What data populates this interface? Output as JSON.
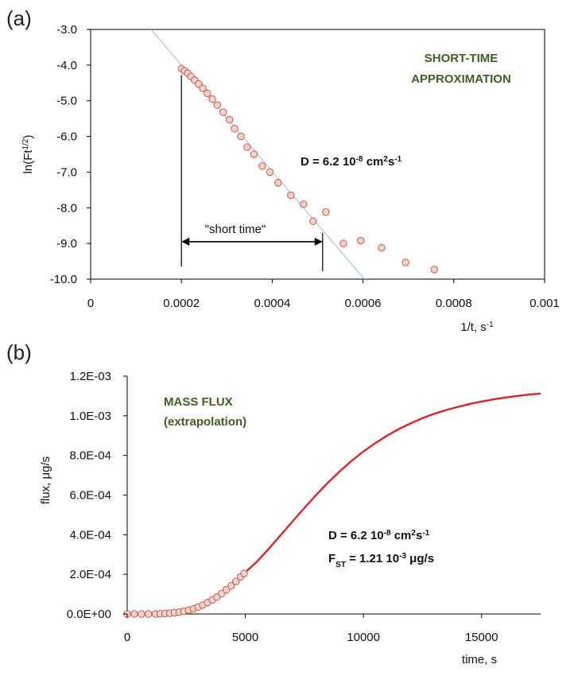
{
  "figure": {
    "panel_a_letter": "(a)",
    "panel_b_letter": "(b)"
  },
  "chart_data": [
    {
      "type": "scatter",
      "panel": "(a)",
      "xlabel_parts": [
        "1/t, s",
        "-1"
      ],
      "ylabel_parts": [
        "ln(Ft",
        "1/2",
        ")"
      ],
      "xlim": [
        0,
        0.001
      ],
      "ylim": [
        -10.0,
        -3.0
      ],
      "x_ticks": [
        0,
        0.0002,
        0.0004,
        0.0006,
        0.0008,
        0.001
      ],
      "x_tick_labels": [
        "0",
        "0.0002",
        "0.0004",
        "0.0006",
        "0.0008",
        "0.001"
      ],
      "y_ticks": [
        -3.0,
        -4.0,
        -5.0,
        -6.0,
        -7.0,
        -8.0,
        -9.0,
        -10.0
      ],
      "y_tick_labels": [
        "-3.0",
        "-4.0",
        "-5.0",
        "-6.0",
        "-7.0",
        "-8.0",
        "-9.0",
        "-10.0"
      ],
      "grid": false,
      "marker_fill": "#f6d5cc",
      "marker_edge": "#c9544a",
      "fit_line_color": "#9dbdd0",
      "points": [
        {
          "x": 0.0002,
          "y": -4.1
        },
        {
          "x": 0.000207,
          "y": -4.16
        },
        {
          "x": 0.000214,
          "y": -4.23
        },
        {
          "x": 0.000221,
          "y": -4.32
        },
        {
          "x": 0.000229,
          "y": -4.42
        },
        {
          "x": 0.000238,
          "y": -4.53
        },
        {
          "x": 0.000247,
          "y": -4.65
        },
        {
          "x": 0.000257,
          "y": -4.79
        },
        {
          "x": 0.000268,
          "y": -4.95
        },
        {
          "x": 0.000279,
          "y": -5.12
        },
        {
          "x": 0.000292,
          "y": -5.32
        },
        {
          "x": 0.000306,
          "y": -5.53
        },
        {
          "x": 0.000317,
          "y": -5.78
        },
        {
          "x": 0.000331,
          "y": -6.0
        },
        {
          "x": 0.000345,
          "y": -6.3
        },
        {
          "x": 0.00036,
          "y": -6.5
        },
        {
          "x": 0.000378,
          "y": -6.83
        },
        {
          "x": 0.000395,
          "y": -7.0
        },
        {
          "x": 0.000413,
          "y": -7.3
        },
        {
          "x": 0.000441,
          "y": -7.65
        },
        {
          "x": 0.000469,
          "y": -7.9
        },
        {
          "x": 0.00049,
          "y": -8.38
        },
        {
          "x": 0.000518,
          "y": -8.12
        },
        {
          "x": 0.000557,
          "y": -9.0
        },
        {
          "x": 0.000595,
          "y": -8.92
        },
        {
          "x": 0.000641,
          "y": -9.12
        },
        {
          "x": 0.000694,
          "y": -9.53
        },
        {
          "x": 0.000757,
          "y": -9.73
        }
      ],
      "fit_line": [
        {
          "x": 0.000133,
          "y": -3.0
        },
        {
          "x": 0.000603,
          "y": -10.0
        }
      ],
      "short_time_range": [
        0.0002,
        0.000511
      ],
      "short_time_arrow_y": -8.95,
      "annotations": {
        "short_time_label": "\"short time\"",
        "title_line1": "SHORT-TIME",
        "title_line2": "APPROXIMATION",
        "d_label_main": "D = 6.2 10",
        "d_label_exp": "-8",
        "d_label_unit": " cm",
        "d_label_unit_exp": "2",
        "d_label_unit2": "s",
        "d_label_unit2_exp": "-1"
      }
    },
    {
      "type": "scatter",
      "panel": "(b)",
      "xlabel": "time, s",
      "ylabel": "flux, μg/s",
      "xlim": [
        0,
        17500
      ],
      "ylim": [
        0,
        0.0012
      ],
      "x_ticks": [
        0,
        5000,
        10000,
        15000
      ],
      "x_tick_labels": [
        "0",
        "5000",
        "10000",
        "15000"
      ],
      "y_ticks": [
        0,
        0.0002,
        0.0004,
        0.0006,
        0.0008,
        0.001,
        0.0012
      ],
      "y_tick_labels": [
        "0.0E+00",
        "2.0E-04",
        "4.0E-04",
        "6.0E-04",
        "8.0E-04",
        "1.0E-03",
        "1.2E-03"
      ],
      "grid": false,
      "marker_fill": "#f6d5cc",
      "marker_edge": "#c9544a",
      "curve_color": "#d9242a",
      "points": [
        {
          "x": 0,
          "y": 0.0
        },
        {
          "x": 300,
          "y": 0.0
        },
        {
          "x": 600,
          "y": 0.0
        },
        {
          "x": 900,
          "y": 0.0
        },
        {
          "x": 1200,
          "y": 0.0
        },
        {
          "x": 1400,
          "y": 1e-06
        },
        {
          "x": 1600,
          "y": 2e-06
        },
        {
          "x": 1800,
          "y": 4e-06
        },
        {
          "x": 2000,
          "y": 6e-06
        },
        {
          "x": 2200,
          "y": 9e-06
        },
        {
          "x": 2400,
          "y": 1.3e-05
        },
        {
          "x": 2600,
          "y": 1.9e-05
        },
        {
          "x": 2800,
          "y": 2.6e-05
        },
        {
          "x": 3000,
          "y": 3.5e-05
        },
        {
          "x": 3200,
          "y": 4.5e-05
        },
        {
          "x": 3400,
          "y": 5.7e-05
        },
        {
          "x": 3600,
          "y": 7.1e-05
        },
        {
          "x": 3800,
          "y": 8.6e-05
        },
        {
          "x": 4000,
          "y": 0.000103
        },
        {
          "x": 4200,
          "y": 0.000122
        },
        {
          "x": 4400,
          "y": 0.000142
        },
        {
          "x": 4600,
          "y": 0.000164
        },
        {
          "x": 4800,
          "y": 0.000187
        },
        {
          "x": 4950,
          "y": 0.000205
        }
      ],
      "curve": [
        {
          "x": 4950,
          "y": 0.000205
        },
        {
          "x": 5500,
          "y": 0.000265
        },
        {
          "x": 6000,
          "y": 0.00033
        },
        {
          "x": 6500,
          "y": 0.000398
        },
        {
          "x": 7000,
          "y": 0.000467
        },
        {
          "x": 7500,
          "y": 0.000535
        },
        {
          "x": 8000,
          "y": 0.000601
        },
        {
          "x": 8500,
          "y": 0.000663
        },
        {
          "x": 9000,
          "y": 0.00072
        },
        {
          "x": 9500,
          "y": 0.000773
        },
        {
          "x": 10000,
          "y": 0.00082
        },
        {
          "x": 10500,
          "y": 0.000862
        },
        {
          "x": 11000,
          "y": 0.0009
        },
        {
          "x": 11500,
          "y": 0.000933
        },
        {
          "x": 12000,
          "y": 0.000962
        },
        {
          "x": 12500,
          "y": 0.000988
        },
        {
          "x": 13000,
          "y": 0.00101
        },
        {
          "x": 13500,
          "y": 0.001029
        },
        {
          "x": 14000,
          "y": 0.001045
        },
        {
          "x": 14500,
          "y": 0.00106
        },
        {
          "x": 15000,
          "y": 0.001072
        },
        {
          "x": 15500,
          "y": 0.001083
        },
        {
          "x": 16000,
          "y": 0.001092
        },
        {
          "x": 16500,
          "y": 0.0011
        },
        {
          "x": 17000,
          "y": 0.001107
        },
        {
          "x": 17500,
          "y": 0.001112
        }
      ],
      "annotations": {
        "title_line1": "MASS FLUX",
        "title_line2": "(extrapolation)",
        "d_label_main": "D = 6.2 10",
        "d_label_exp": "-8",
        "d_label_unit": " cm",
        "d_label_unit_exp": "2",
        "d_label_unit2": "s",
        "d_label_unit2_exp": "-1",
        "fst_label_main": "F",
        "fst_label_sub": "ST",
        "fst_label_rest": " = 1.21 10",
        "fst_label_exp": "-3",
        "fst_label_unit": " μg/s"
      }
    }
  ]
}
